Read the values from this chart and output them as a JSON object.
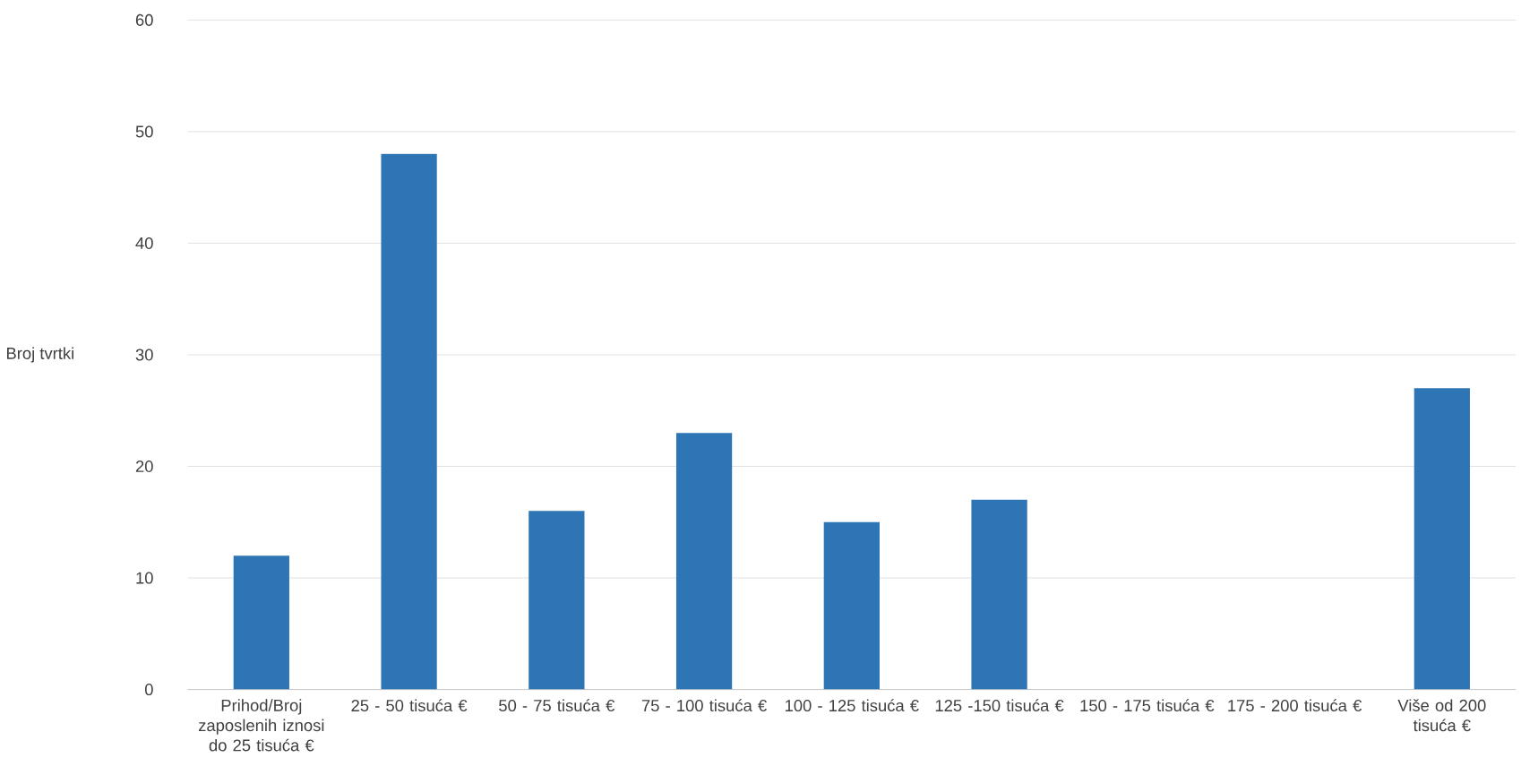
{
  "chart_data": {
    "type": "bar",
    "ylabel": "Broj tvrtki",
    "categories": [
      "Prihod/Broj zaposlenih iznosi do 25 tisuća €",
      "25 - 50 tisuća €",
      "50 - 75 tisuća €",
      "75 - 100 tisuća €",
      "100 - 125 tisuća €",
      "125 -150 tisuća €",
      "150 - 175 tisuća €",
      "175 - 200 tisuća €",
      "Više od 200 tisuća €"
    ],
    "values": [
      12,
      48,
      16,
      23,
      15,
      17,
      0,
      0,
      27
    ],
    "color": "#2e75b6",
    "ylim": [
      0,
      60
    ],
    "yticks": [
      0,
      10,
      20,
      30,
      40,
      50,
      60
    ],
    "grid": "y"
  }
}
